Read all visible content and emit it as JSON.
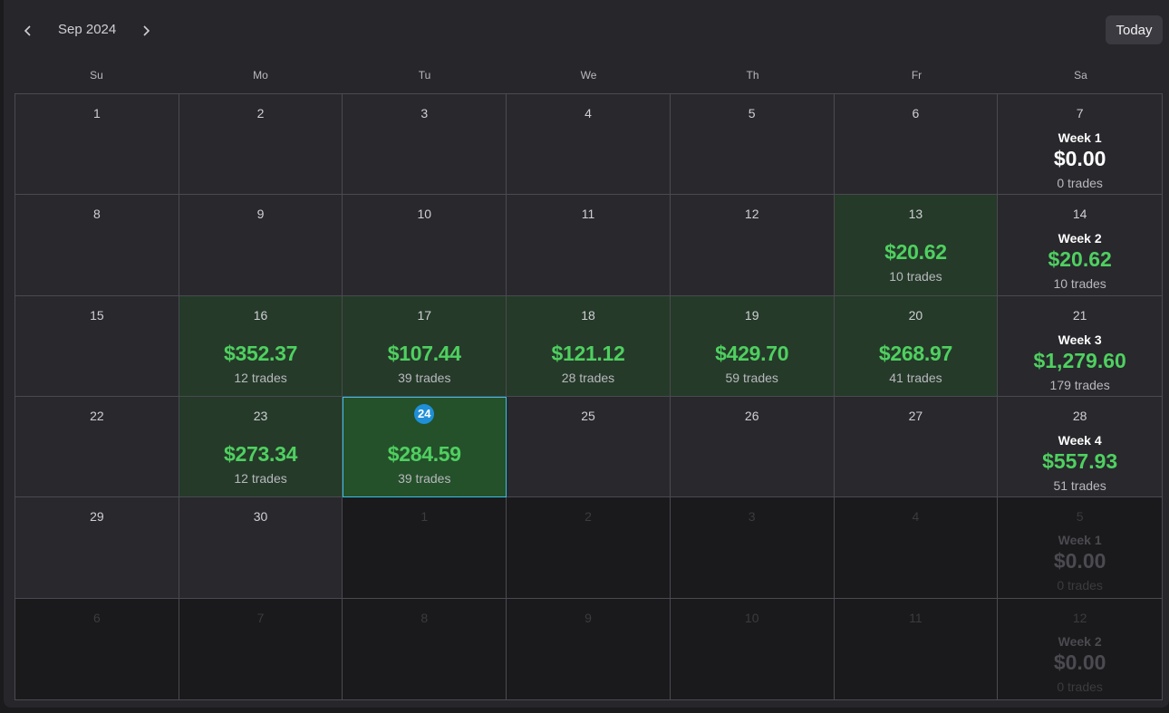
{
  "header": {
    "month": "Sep 2024",
    "prev_icon": "chevron-left-icon",
    "next_icon": "chevron-right-icon",
    "today_label": "Today"
  },
  "weekdays": [
    "Su",
    "Mo",
    "Tu",
    "We",
    "Th",
    "Fr",
    "Sa"
  ],
  "colors": {
    "profit": "#4fd060",
    "profit_bg": "#253a29",
    "today_badge": "#1f8fd8",
    "selected_border": "#3ac0e6"
  },
  "weeks": [
    {
      "days": [
        {
          "d": "1"
        },
        {
          "d": "2"
        },
        {
          "d": "3"
        },
        {
          "d": "4"
        },
        {
          "d": "5"
        },
        {
          "d": "6"
        }
      ],
      "summary": {
        "day": "7",
        "title": "Week 1",
        "pnl": "$0.00",
        "trades": "0 trades"
      }
    },
    {
      "days": [
        {
          "d": "8"
        },
        {
          "d": "9"
        },
        {
          "d": "10"
        },
        {
          "d": "11"
        },
        {
          "d": "12"
        },
        {
          "d": "13",
          "pnl": "$20.62",
          "trades": "10 trades"
        }
      ],
      "summary": {
        "day": "14",
        "title": "Week 2",
        "pnl": "$20.62",
        "trades": "10 trades"
      }
    },
    {
      "days": [
        {
          "d": "15"
        },
        {
          "d": "16",
          "pnl": "$352.37",
          "trades": "12 trades"
        },
        {
          "d": "17",
          "pnl": "$107.44",
          "trades": "39 trades"
        },
        {
          "d": "18",
          "pnl": "$121.12",
          "trades": "28 trades"
        },
        {
          "d": "19",
          "pnl": "$429.70",
          "trades": "59 trades"
        },
        {
          "d": "20",
          "pnl": "$268.97",
          "trades": "41 trades"
        }
      ],
      "summary": {
        "day": "21",
        "title": "Week 3",
        "pnl": "$1,279.60",
        "trades": "179 trades"
      }
    },
    {
      "days": [
        {
          "d": "22"
        },
        {
          "d": "23",
          "pnl": "$273.34",
          "trades": "12 trades"
        },
        {
          "d": "24",
          "pnl": "$284.59",
          "trades": "39 trades",
          "today": true
        },
        {
          "d": "25"
        },
        {
          "d": "26"
        },
        {
          "d": "27"
        }
      ],
      "summary": {
        "day": "28",
        "title": "Week 4",
        "pnl": "$557.93",
        "trades": "51 trades"
      }
    },
    {
      "days": [
        {
          "d": "29"
        },
        {
          "d": "30"
        },
        {
          "d": "1",
          "other": true
        },
        {
          "d": "2",
          "other": true
        },
        {
          "d": "3",
          "other": true
        },
        {
          "d": "4",
          "other": true
        }
      ],
      "summary": {
        "day": "5",
        "title": "Week 1",
        "pnl": "$0.00",
        "trades": "0 trades",
        "other": true
      }
    },
    {
      "days": [
        {
          "d": "6",
          "other": true
        },
        {
          "d": "7",
          "other": true
        },
        {
          "d": "8",
          "other": true
        },
        {
          "d": "9",
          "other": true
        },
        {
          "d": "10",
          "other": true
        },
        {
          "d": "11",
          "other": true
        }
      ],
      "summary": {
        "day": "12",
        "title": "Week 2",
        "pnl": "$0.00",
        "trades": "0 trades",
        "other": true
      }
    }
  ]
}
